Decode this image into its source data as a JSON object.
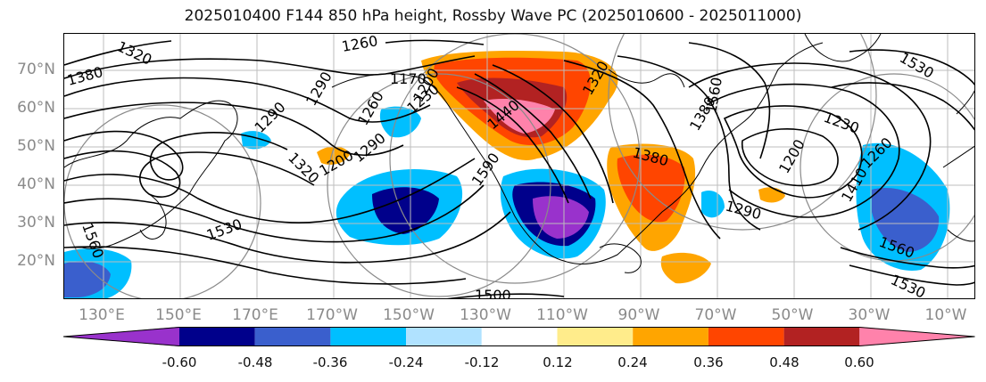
{
  "title": "2025010400 F144 850 hPa height, Rossby Wave PC (2025010600 - 2025011000)",
  "lat_labels": [
    "70°N",
    "60°N",
    "50°N",
    "40°N",
    "30°N",
    "20°N"
  ],
  "lon_labels": [
    "130°E",
    "150°E",
    "170°E",
    "170°W",
    "150°W",
    "130°W",
    "110°W",
    "90°W",
    "70°W",
    "50°W",
    "30°W",
    "10°W"
  ],
  "contour_labels": [
    "1320",
    "1380",
    "1260",
    "1170",
    "1290",
    "1260",
    "1290",
    "1320",
    "1200",
    "1230",
    "1290",
    "1200",
    "1530",
    "1560",
    "1500",
    "1590",
    "1440",
    "1380",
    "1320",
    "1230",
    "1260",
    "1380",
    "1290",
    "1200",
    "1410",
    "1560",
    "1530",
    "1560",
    "1530"
  ],
  "colorbar": {
    "ticks": [
      "-0.60",
      "-0.48",
      "-0.36",
      "-0.24",
      "-0.12",
      "0.12",
      "0.24",
      "0.36",
      "0.48",
      "0.60"
    ],
    "colors": [
      "#9932CC",
      "#00008B",
      "#3A5FCD",
      "#00BFFF",
      "#B0E2FF",
      "#FFFFFF",
      "#FFEC8B",
      "#FFA500",
      "#FF4500",
      "#B22222",
      "#FF82AB"
    ]
  }
}
